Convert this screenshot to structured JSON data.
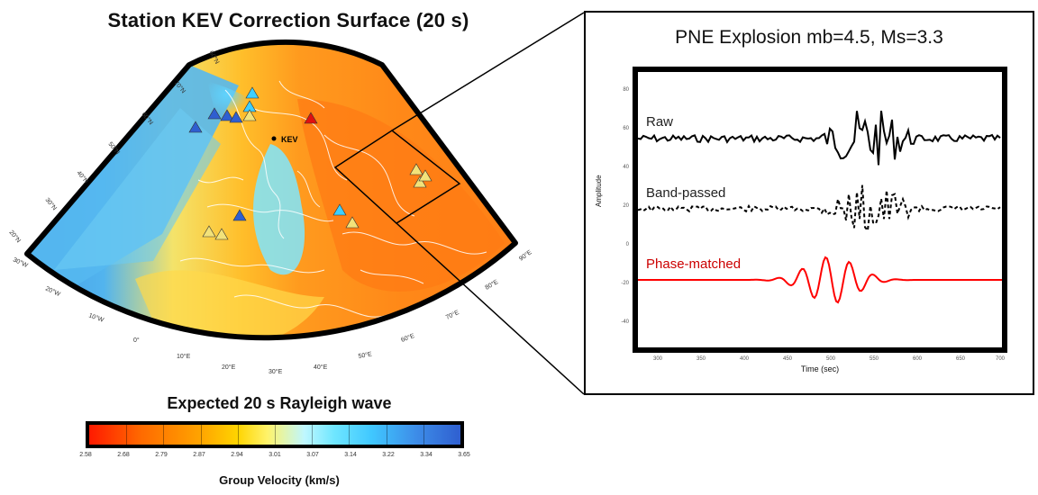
{
  "map": {
    "title": "Station KEV Correction Surface (20 s)",
    "station_label": "KEV",
    "lat_labels": [
      "60°N",
      "70°N",
      "60°N",
      "50°N",
      "40°N",
      "30°N",
      "20°N"
    ],
    "lon_labels": [
      "30°W",
      "20°W",
      "10°W",
      "0°",
      "10°E",
      "20°E",
      "30°E",
      "40°E",
      "50°E",
      "60°E",
      "70°E",
      "80°E",
      "90°E"
    ]
  },
  "colorbar": {
    "title": "Expected 20 s Rayleigh wave",
    "axis_label": "Group Velocity (km/s)",
    "ticks": [
      "2.58",
      "2.68",
      "2.79",
      "2.87",
      "2.94",
      "3.01",
      "3.07",
      "3.14",
      "3.22",
      "3.34",
      "3.65"
    ]
  },
  "inset": {
    "title": "PNE Explosion mb=4.5, Ms=3.3",
    "y_label": "Amplitude",
    "x_label": "Time (sec)",
    "traces": [
      {
        "label": "Raw",
        "color": "#000000"
      },
      {
        "label": "Band-passed",
        "color": "#000000"
      },
      {
        "label": "Phase-matched",
        "color": "#ff0000"
      }
    ],
    "y_ticks": [
      "80",
      "60",
      "40",
      "20",
      "0",
      "-20",
      "-40",
      "-60"
    ],
    "x_ticks": [
      "300",
      "350",
      "400",
      "450",
      "500",
      "550",
      "600",
      "650",
      "700"
    ]
  }
}
